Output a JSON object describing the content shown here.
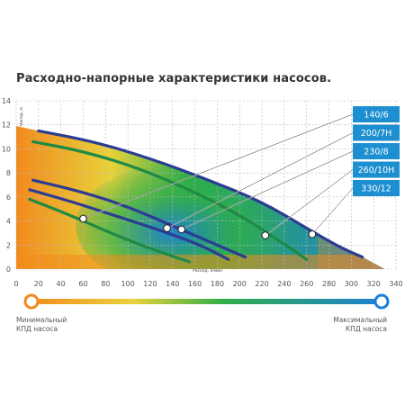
{
  "title": "Расходно-напорные характеристики насосов.",
  "colors": {
    "orange": "#f28a1e",
    "yellow": "#e8d23a",
    "green": "#2fae4a",
    "blue": "#1d7fd6",
    "curve": "#2a3d93",
    "curve_green": "#1f8a45",
    "label_box": "#1d8fd0",
    "grid": "#bbbbbb"
  },
  "chart_data": {
    "type": "line",
    "title": "Расходно-напорные характеристики насосов.",
    "xlabel": "Расход, л/мин",
    "ylabel": "Напор, м",
    "xlim": [
      0,
      340
    ],
    "ylim": [
      0,
      14
    ],
    "x_ticks": [
      0,
      20,
      40,
      60,
      80,
      100,
      120,
      140,
      160,
      180,
      200,
      220,
      240,
      260,
      280,
      300,
      320,
      340
    ],
    "y_ticks": [
      0,
      2,
      4,
      6,
      8,
      10,
      12,
      14
    ],
    "grid": true,
    "series": [
      {
        "name": "140/6",
        "color": "#1f8a45",
        "marker": [
          60,
          4.2
        ],
        "points": [
          [
            12,
            5.8
          ],
          [
            40,
            4.8
          ],
          [
            70,
            3.6
          ],
          [
            100,
            2.4
          ],
          [
            130,
            1.4
          ],
          [
            155,
            0.6
          ]
        ]
      },
      {
        "name": "200/7H",
        "color": "#2a3d93",
        "marker": [
          135,
          3.4
        ],
        "points": [
          [
            12,
            6.6
          ],
          [
            50,
            5.6
          ],
          [
            90,
            4.4
          ],
          [
            130,
            3.2
          ],
          [
            165,
            2.0
          ],
          [
            190,
            0.8
          ]
        ]
      },
      {
        "name": "230/8",
        "color": "#2a3d93",
        "marker": [
          148,
          3.3
        ],
        "points": [
          [
            15,
            7.4
          ],
          [
            60,
            6.4
          ],
          [
            100,
            5.2
          ],
          [
            140,
            3.6
          ],
          [
            175,
            2.2
          ],
          [
            205,
            1.0
          ]
        ]
      },
      {
        "name": "260/10H",
        "color": "#1f8a45",
        "marker": [
          223,
          2.8
        ],
        "points": [
          [
            15,
            10.6
          ],
          [
            60,
            9.8
          ],
          [
            110,
            8.4
          ],
          [
            160,
            6.4
          ],
          [
            200,
            4.5
          ],
          [
            235,
            2.4
          ],
          [
            260,
            0.8
          ]
        ]
      },
      {
        "name": "330/12",
        "color": "#2a3d93",
        "marker": [
          265,
          2.9
        ],
        "points": [
          [
            20,
            11.5
          ],
          [
            70,
            10.6
          ],
          [
            120,
            9.2
          ],
          [
            170,
            7.5
          ],
          [
            220,
            5.6
          ],
          [
            260,
            3.4
          ],
          [
            290,
            1.8
          ],
          [
            310,
            1.0
          ]
        ]
      }
    ]
  },
  "legend": {
    "min_label_line1": "Минимальный",
    "min_label_line2": "КПД насоса",
    "max_label_line1": "Максимальный",
    "max_label_line2": "КПД насоса"
  }
}
